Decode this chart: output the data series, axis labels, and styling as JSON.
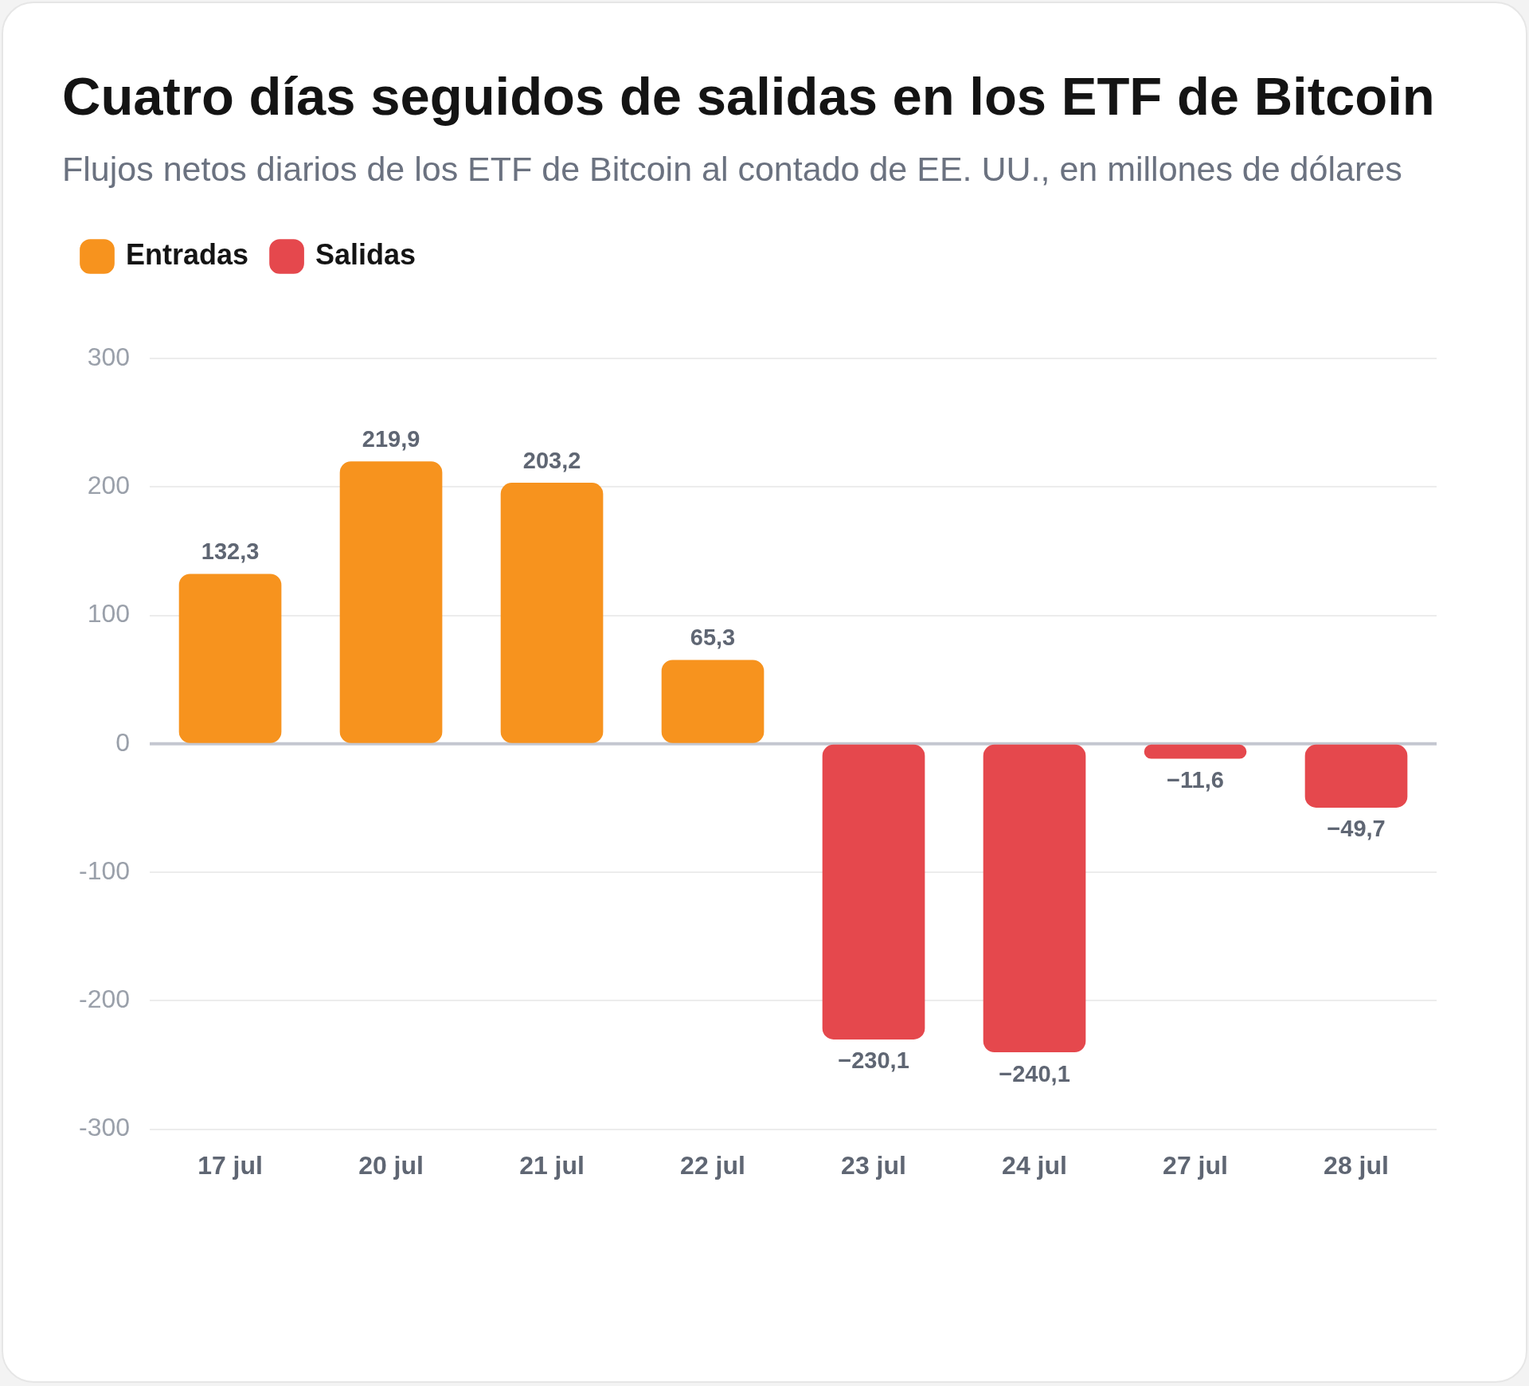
{
  "chart_data": {
    "type": "bar",
    "title": "Cuatro días seguidos de salidas en los ETF de Bitcoin",
    "subtitle": "Flujos netos diarios de los ETF de Bitcoin al contado de EE. UU., en millones de dólares",
    "categories": [
      "17 jul",
      "20 jul",
      "21 jul",
      "22 jul",
      "23 jul",
      "24 jul",
      "27 jul",
      "28 jul"
    ],
    "series": [
      {
        "name": "Entradas",
        "color": "#f7931e",
        "values": [
          132.3,
          219.9,
          203.2,
          65.3,
          null,
          null,
          null,
          null
        ],
        "value_labels": [
          "132,3",
          "219,9",
          "203,2",
          "65,3",
          null,
          null,
          null,
          null
        ]
      },
      {
        "name": "Salidas",
        "color": "#e5484d",
        "values": [
          null,
          null,
          null,
          null,
          -230.1,
          -240.1,
          -11.6,
          -49.7
        ],
        "value_labels": [
          null,
          null,
          null,
          null,
          "−230,1",
          "−240,1",
          "−11,6",
          "−49,7"
        ]
      }
    ],
    "ylim": [
      -300,
      300
    ],
    "yticks": [
      300,
      200,
      100,
      0,
      -100,
      -200,
      -300
    ],
    "grid": "y",
    "legend": "top left"
  }
}
